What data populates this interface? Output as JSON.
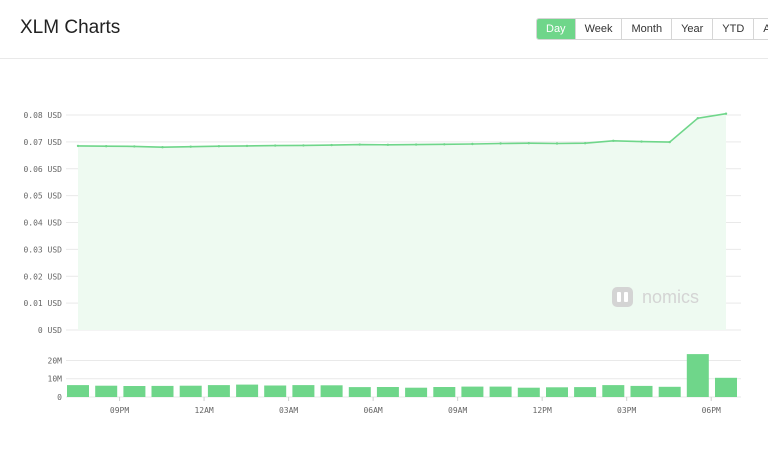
{
  "header": {
    "title": "XLM Charts",
    "ranges": [
      "Day",
      "Week",
      "Month",
      "Year",
      "YTD",
      "All"
    ],
    "active_range": "Day"
  },
  "watermark": {
    "text": "nomics"
  },
  "colors": {
    "accent": "#6fd68a",
    "line": "#6fd68a",
    "area": "#eefaf1",
    "bar": "#6fd68a",
    "grid": "#e9e9e9"
  },
  "chart_data": [
    {
      "type": "area",
      "y_ticks": [
        "0 USD",
        "0.01 USD",
        "0.02 USD",
        "0.03 USD",
        "0.04 USD",
        "0.05 USD",
        "0.06 USD",
        "0.07 USD",
        "0.08 USD"
      ],
      "ylim": [
        0,
        0.08
      ],
      "xlim": [
        0,
        23
      ],
      "x": [
        0,
        1,
        2,
        3,
        4,
        5,
        6,
        7,
        8,
        9,
        10,
        11,
        12,
        13,
        14,
        15,
        16,
        17,
        18,
        19,
        20,
        21,
        22,
        23
      ],
      "values": [
        0.0685,
        0.0684,
        0.0683,
        0.068,
        0.0682,
        0.0684,
        0.0685,
        0.0686,
        0.0687,
        0.0688,
        0.069,
        0.0689,
        0.069,
        0.0691,
        0.0692,
        0.0694,
        0.0695,
        0.0694,
        0.0695,
        0.0704,
        0.0701,
        0.0699,
        0.0788,
        0.0805
      ],
      "grid": true
    },
    {
      "type": "bar",
      "y_ticks": [
        "0",
        "10M",
        "20M"
      ],
      "ylim": [
        0,
        23000000
      ],
      "x_ticks": [
        "09PM",
        "12AM",
        "03AM",
        "06AM",
        "09AM",
        "12PM",
        "03PM",
        "06PM"
      ],
      "x_tick_positions": [
        1,
        4,
        7,
        10,
        13,
        16,
        19,
        22
      ],
      "values": [
        6500000,
        6200000,
        6000000,
        6100000,
        6200000,
        6500000,
        6800000,
        6300000,
        6500000,
        6400000,
        5400000,
        5500000,
        5100000,
        5500000,
        5700000,
        5700000,
        5100000,
        5300000,
        5400000,
        6500000,
        6100000,
        5600000,
        23500000,
        10500000
      ],
      "grid": true
    }
  ]
}
